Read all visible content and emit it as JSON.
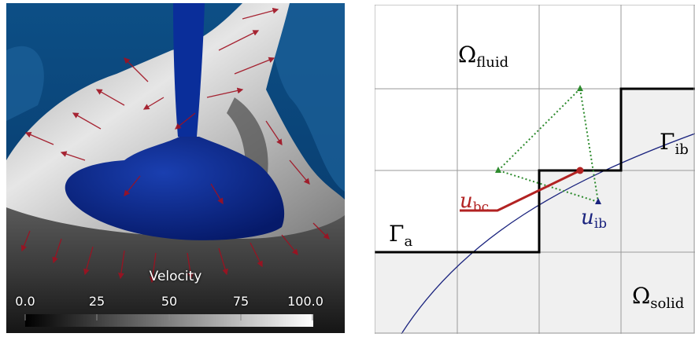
{
  "left_panel": {
    "colorbar": {
      "title": "Velocity",
      "ticks": [
        "0.0",
        "25",
        "50",
        "75",
        "100.0"
      ],
      "gradient": [
        "#000000",
        "#ffffff"
      ]
    },
    "colors": {
      "background": "#0b4b82",
      "valve": "#0a2a8c",
      "arrows": "#a01020",
      "surface": "#d8d8d8"
    }
  },
  "right_panel": {
    "labels": {
      "omega_fluid": "Ω",
      "omega_fluid_sub": "fluid",
      "omega_solid": "Ω",
      "omega_solid_sub": "solid",
      "gamma_ib": "Γ",
      "gamma_ib_sub": "ib",
      "gamma_a": "Γ",
      "gamma_a_sub": "a",
      "u_bc": "u",
      "u_bc_sub": "bc",
      "u_ib": "u",
      "u_ib_sub": "ib"
    },
    "colors": {
      "grid": "#9a9a9a",
      "solid_fill": "#f0f0f0",
      "boundary": "#000000",
      "ib_curve": "#1a237e",
      "u_bc": "#b22222",
      "u_ib": "#1a237e",
      "stencil": "#2e8b2e"
    }
  }
}
